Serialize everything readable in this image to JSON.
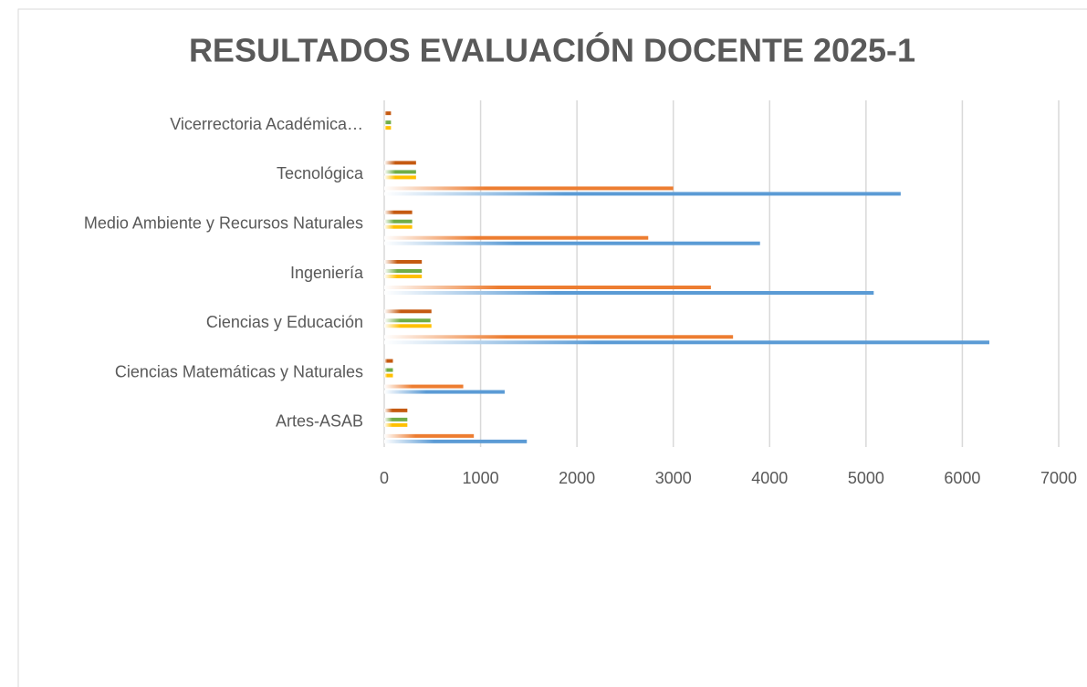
{
  "chart_data": {
    "type": "barh",
    "title": "RESULTADOS EVALUACIÓN DOCENTE 2025-1",
    "categories": [
      "Artes-ASAB",
      "Ciencias Matemáticas y Naturales",
      "Ciencias y Educación",
      "Ingeniería",
      "Medio Ambiente y Recursos Naturales",
      "Tecnológica",
      "Vicerrectoria Académica…"
    ],
    "series": [
      {
        "color": "#5b9bd5",
        "values": [
          1480,
          1250,
          6280,
          5080,
          3900,
          5360,
          0
        ]
      },
      {
        "color": "#ed7d31",
        "values": [
          930,
          820,
          3620,
          3390,
          2740,
          3000,
          0
        ]
      },
      {
        "color": "#ffc000",
        "values": [
          240,
          90,
          490,
          390,
          290,
          330,
          70
        ]
      },
      {
        "color": "#70ad47",
        "values": [
          240,
          90,
          480,
          390,
          290,
          330,
          70
        ]
      },
      {
        "color": "#c55a11",
        "values": [
          240,
          90,
          490,
          390,
          290,
          330,
          70
        ]
      }
    ],
    "xlim": [
      0,
      7000
    ],
    "xticks": [
      0,
      1000,
      2000,
      3000,
      4000,
      5000,
      6000,
      7000
    ],
    "grid": true
  }
}
